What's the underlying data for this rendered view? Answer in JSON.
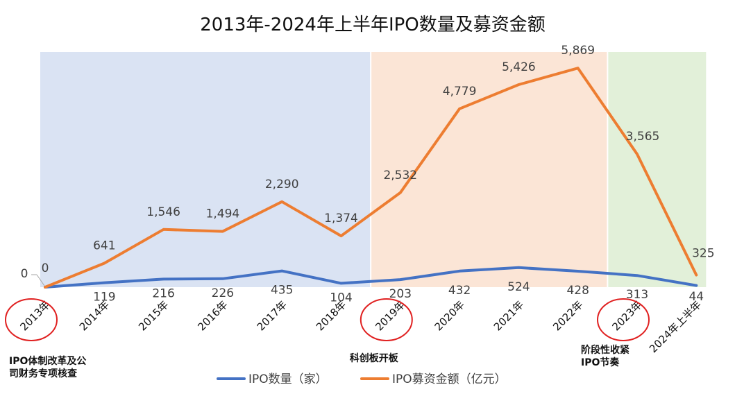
{
  "chart_data": {
    "type": "line",
    "title": "2013年-2024年上半年IPO数量及募资金额",
    "categories": [
      "2013年",
      "2014年",
      "2015年",
      "2016年",
      "2017年",
      "2018年",
      "2019年",
      "2020年",
      "2021年",
      "2022年",
      "2023年",
      "2024年上半年"
    ],
    "series": [
      {
        "name": "IPO数量（家）",
        "color": "#4472C4",
        "values": [
          0,
          119,
          216,
          226,
          435,
          104,
          203,
          432,
          524,
          428,
          313,
          44
        ],
        "labels": [
          "0",
          "119",
          "216",
          "226",
          "435",
          "104",
          "203",
          "432",
          "524",
          "428",
          "313",
          "44"
        ]
      },
      {
        "name": "IPO募资金额（亿元）",
        "color": "#ED7D31",
        "values": [
          0,
          641,
          1546,
          1494,
          2290,
          1374,
          2532,
          4779,
          5426,
          5869,
          3565,
          325
        ],
        "labels": [
          "0",
          "641",
          "1,546",
          "1,494",
          "2,290",
          "1,374",
          "2,532",
          "4,779",
          "5,426",
          "5,869",
          "3,565",
          "325"
        ]
      }
    ],
    "ylim": [
      0,
      6300
    ],
    "grid": false,
    "legend_position": "bottom",
    "phases": [
      {
        "from_category": "2013年",
        "to_category": "2018年",
        "color": "#DAE3F3"
      },
      {
        "from_category": "2019年",
        "to_category": "2022年",
        "color": "#FBE5D6"
      },
      {
        "from_category": "2023年",
        "to_category": "2024年上半年",
        "color": "#E2F0D9"
      }
    ],
    "highlighted_categories": [
      "2013年",
      "2019年",
      "2023年"
    ],
    "highlight_color": "#E02020",
    "annotations": [
      {
        "category": "2013年",
        "lines": [
          "IPO体制改革及公",
          "司财务专项核查"
        ]
      },
      {
        "category": "2019年",
        "lines": [
          "科创板开板"
        ]
      },
      {
        "category": "2023年",
        "lines": [
          "阶段性收紧",
          "IPO节奏"
        ]
      }
    ]
  }
}
